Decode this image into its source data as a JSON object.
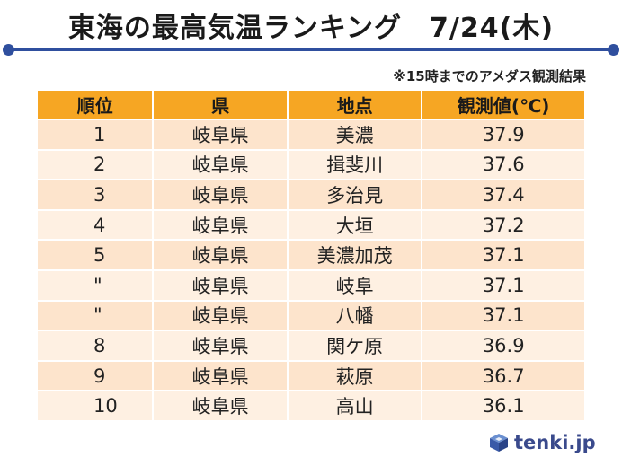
{
  "title": "東海の最高気温ランキング　7/24(木)",
  "note": "※15時までのアメダス観測結果",
  "table": {
    "headers": [
      "順位",
      "県",
      "地点",
      "観測値(℃)"
    ],
    "rows": [
      {
        "rank": "1",
        "pref": "岐阜県",
        "place": "美濃",
        "value": "37.9"
      },
      {
        "rank": "2",
        "pref": "岐阜県",
        "place": "揖斐川",
        "value": "37.6"
      },
      {
        "rank": "3",
        "pref": "岐阜県",
        "place": "多治見",
        "value": "37.4"
      },
      {
        "rank": "4",
        "pref": "岐阜県",
        "place": "大垣",
        "value": "37.2"
      },
      {
        "rank": "5",
        "pref": "岐阜県",
        "place": "美濃加茂",
        "value": "37.1"
      },
      {
        "rank": "\"",
        "pref": "岐阜県",
        "place": "岐阜",
        "value": "37.1"
      },
      {
        "rank": "\"",
        "pref": "岐阜県",
        "place": "八幡",
        "value": "37.1"
      },
      {
        "rank": "8",
        "pref": "岐阜県",
        "place": "関ケ原",
        "value": "36.9"
      },
      {
        "rank": "9",
        "pref": "岐阜県",
        "place": "萩原",
        "value": "36.7"
      },
      {
        "rank": "10",
        "pref": "岐阜県",
        "place": "高山",
        "value": "36.1"
      }
    ]
  },
  "logo": {
    "text": "tenki.jp",
    "icon": "tenki-cube-icon"
  },
  "colors": {
    "accent": "#2f4f9e",
    "header": "#f6a623",
    "row_odd": "#fde4cc",
    "row_even": "#fef0e2",
    "logo": "#3a4a8c"
  }
}
